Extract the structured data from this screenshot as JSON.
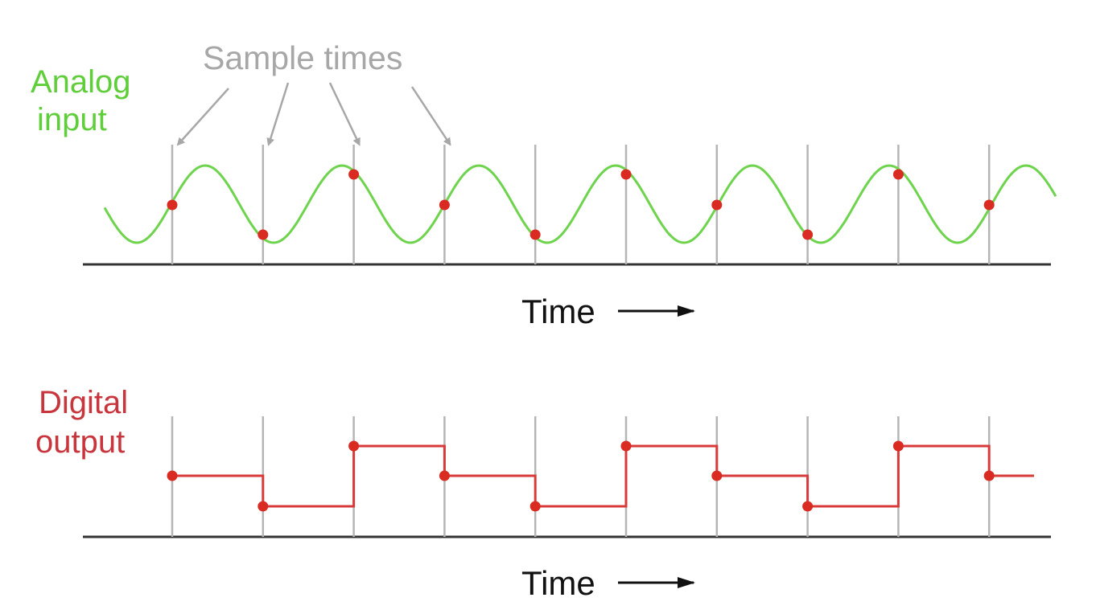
{
  "labels": {
    "analog_line1": "Analog",
    "analog_line2": "input",
    "sample_times": "Sample times",
    "digital_line1": "Digital",
    "digital_line2": "output",
    "time_top": "Time",
    "time_bottom": "Time"
  },
  "colors": {
    "analog": "#6ed34d",
    "analog_label": "#5fce3a",
    "digital": "#d83a3a",
    "digital_label": "#c9353c",
    "sample_dot": "#d92b22",
    "sample_line": "#b5b5b5",
    "sample_label": "#a7a7a7",
    "axis": "#333333",
    "time_label": "#111111"
  },
  "samples": {
    "count": 10,
    "levels": [
      0,
      -1,
      1,
      0,
      -1,
      1,
      0,
      -1,
      1,
      0
    ]
  },
  "sample_times_arrows": {
    "targets": [
      0,
      1,
      2,
      3
    ]
  }
}
